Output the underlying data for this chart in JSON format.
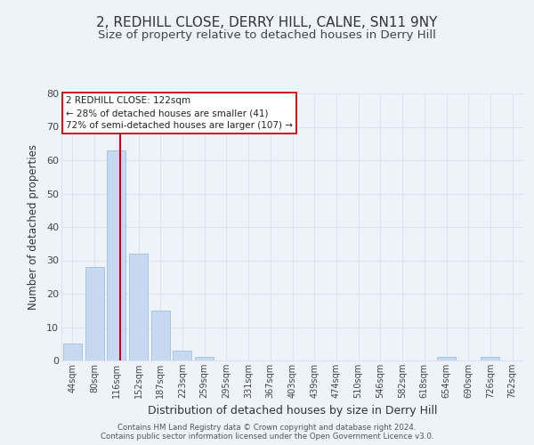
{
  "title": "2, REDHILL CLOSE, DERRY HILL, CALNE, SN11 9NY",
  "subtitle": "Size of property relative to detached houses in Derry Hill",
  "xlabel": "Distribution of detached houses by size in Derry Hill",
  "ylabel": "Number of detached properties",
  "categories": [
    "44sqm",
    "80sqm",
    "116sqm",
    "152sqm",
    "187sqm",
    "223sqm",
    "259sqm",
    "295sqm",
    "331sqm",
    "367sqm",
    "403sqm",
    "439sqm",
    "474sqm",
    "510sqm",
    "546sqm",
    "582sqm",
    "618sqm",
    "654sqm",
    "690sqm",
    "726sqm",
    "762sqm"
  ],
  "bar_values": [
    5,
    28,
    63,
    32,
    15,
    3,
    1,
    0,
    0,
    0,
    0,
    0,
    0,
    0,
    0,
    0,
    0,
    1,
    0,
    1,
    0
  ],
  "bar_color": "#c6d9f1",
  "bar_edge_color": "#a8c4e0",
  "vline_x": 2.17,
  "vline_color": "#cc0000",
  "ylim": [
    0,
    80
  ],
  "yticks": [
    0,
    10,
    20,
    30,
    40,
    50,
    60,
    70,
    80
  ],
  "annotation_title": "2 REDHILL CLOSE: 122sqm",
  "annotation_line1": "← 28% of detached houses are smaller (41)",
  "annotation_line2": "72% of semi-detached houses are larger (107) →",
  "annotation_box_color": "#ffffff",
  "annotation_box_edge": "#cc0000",
  "grid_color": "#dde4f0",
  "background_color": "#eef2f9",
  "footer1": "Contains HM Land Registry data © Crown copyright and database right 2024.",
  "footer2": "Contains public sector information licensed under the Open Government Licence v3.0.",
  "title_fontsize": 11,
  "subtitle_fontsize": 9.5,
  "xlabel_fontsize": 9,
  "ylabel_fontsize": 8.5
}
